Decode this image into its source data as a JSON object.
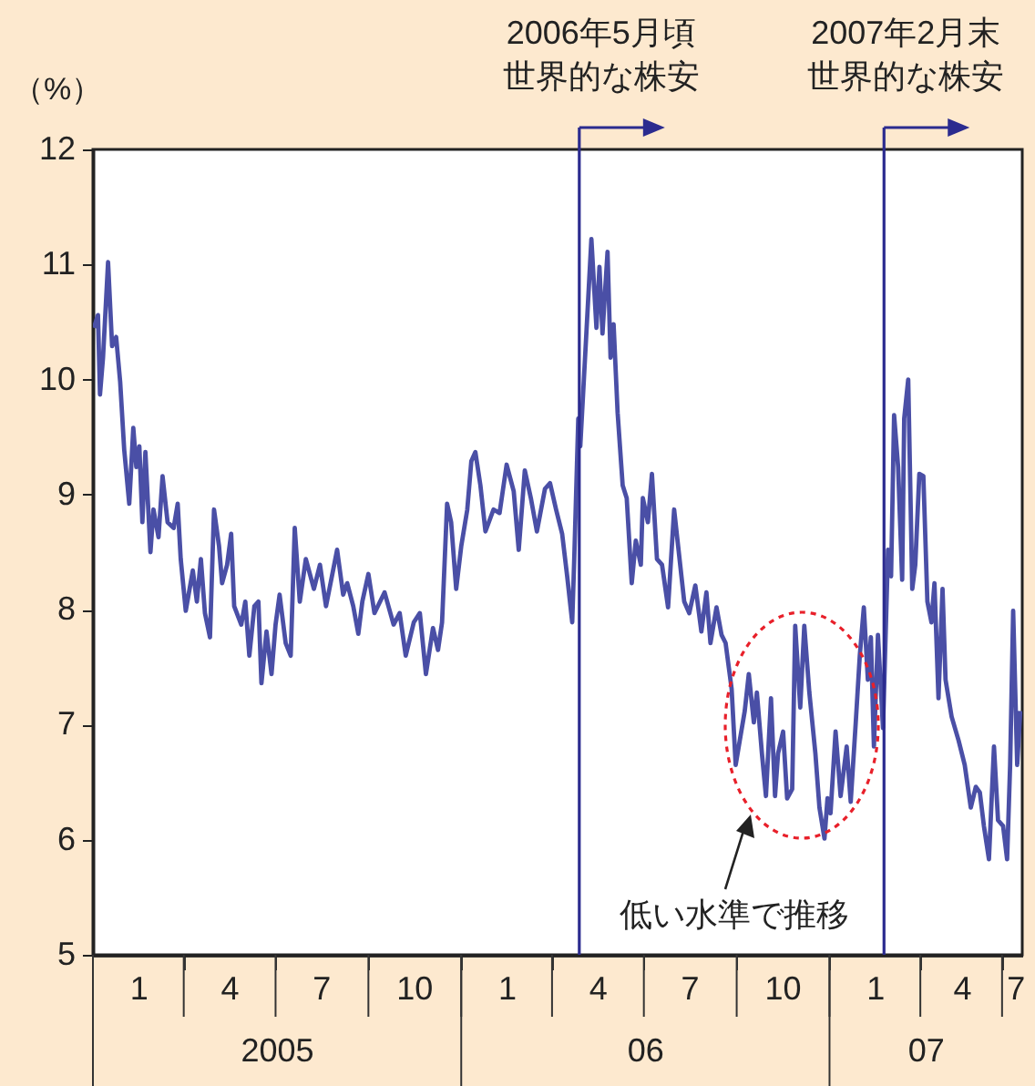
{
  "chart_data": {
    "type": "line",
    "ylabel": "（%）",
    "color": "#4a4fa6",
    "x": [
      "2005-01-02",
      "2005-01-06",
      "2005-01-08",
      "2005-01-11",
      "2005-01-16",
      "2005-01-20",
      "2005-01-24",
      "2005-01-28",
      "2005-02-01",
      "2005-02-06",
      "2005-02-10",
      "2005-02-13",
      "2005-02-16",
      "2005-02-19",
      "2005-02-22",
      "2005-02-27",
      "2005-03-02",
      "2005-03-07",
      "2005-03-11",
      "2005-03-16",
      "2005-03-22",
      "2005-03-26",
      "2005-03-29",
      "2005-04-03",
      "2005-04-10",
      "2005-04-14",
      "2005-04-18",
      "2005-04-22",
      "2005-04-27",
      "2005-05-01",
      "2005-05-06",
      "2005-05-09",
      "2005-05-14",
      "2005-05-18",
      "2005-05-21",
      "2005-05-28",
      "2005-06-01",
      "2005-06-05",
      "2005-06-10",
      "2005-06-14",
      "2005-06-17",
      "2005-06-22",
      "2005-06-27",
      "2005-07-01",
      "2005-07-05",
      "2005-07-11",
      "2005-07-16",
      "2005-07-20",
      "2005-07-25",
      "2005-07-31",
      "2005-08-08",
      "2005-08-14",
      "2005-08-20",
      "2005-08-31",
      "2005-09-06",
      "2005-09-10",
      "2005-09-16",
      "2005-09-21",
      "2005-09-25",
      "2005-10-01",
      "2005-10-07",
      "2005-10-17",
      "2005-10-26",
      "2005-11-01",
      "2005-11-07",
      "2005-11-15",
      "2005-11-21",
      "2005-11-27",
      "2005-12-04",
      "2005-12-09",
      "2005-12-13",
      "2005-12-18",
      "2005-12-22",
      "2005-12-27",
      "2006-01-01",
      "2006-01-07",
      "2006-01-11",
      "2006-01-15",
      "2006-01-20",
      "2006-01-25",
      "2006-02-02",
      "2006-02-08",
      "2006-02-15",
      "2006-02-22",
      "2006-02-27",
      "2006-03-05",
      "2006-03-11",
      "2006-03-17",
      "2006-03-25",
      "2006-03-30",
      "2006-04-05",
      "2006-04-11",
      "2006-04-16",
      "2006-04-21",
      "2006-04-23",
      "2006-04-27",
      "2006-04-29",
      "2006-05-05",
      "2006-05-10",
      "2006-05-15",
      "2006-05-18",
      "2006-05-21",
      "2006-05-26",
      "2006-05-29",
      "2006-06-01",
      "2006-06-05",
      "2006-06-10",
      "2006-06-14",
      "2006-06-19",
      "2006-06-23",
      "2006-06-28",
      "2006-06-30",
      "2006-07-05",
      "2006-07-09",
      "2006-07-14",
      "2006-07-19",
      "2006-07-25",
      "2006-07-31",
      "2006-08-04",
      "2006-08-10",
      "2006-08-15",
      "2006-08-21",
      "2006-08-27",
      "2006-09-01",
      "2006-09-05",
      "2006-09-11",
      "2006-09-16",
      "2006-09-20",
      "2006-09-26",
      "2006-09-30",
      "2006-10-04",
      "2006-10-09",
      "2006-10-13",
      "2006-10-18",
      "2006-10-21",
      "2006-10-26",
      "2006-10-30",
      "2006-11-04",
      "2006-11-08",
      "2006-11-11",
      "2006-11-16",
      "2006-11-20",
      "2006-11-25",
      "2006-11-28",
      "2006-12-03",
      "2006-12-07",
      "2006-12-12",
      "2006-12-18",
      "2006-12-22",
      "2006-12-27",
      "2006-12-30",
      "2007-01-02",
      "2007-01-07",
      "2007-01-12",
      "2007-01-18",
      "2007-01-22",
      "2007-01-27",
      "2007-01-31",
      "2007-02-04",
      "2007-02-08",
      "2007-02-11",
      "2007-02-14",
      "2007-02-18",
      "2007-02-23",
      "2007-02-28",
      "2007-03-03",
      "2007-03-06",
      "2007-03-10",
      "2007-03-14",
      "2007-03-16",
      "2007-03-20",
      "2007-03-24",
      "2007-03-27",
      "2007-03-31",
      "2007-04-04",
      "2007-04-08",
      "2007-04-12",
      "2007-04-15",
      "2007-04-19",
      "2007-04-23",
      "2007-04-26",
      "2007-05-02",
      "2007-05-09",
      "2007-05-15",
      "2007-05-21",
      "2007-05-26",
      "2007-05-30",
      "2007-06-03",
      "2007-06-08",
      "2007-06-13",
      "2007-06-17",
      "2007-06-22",
      "2007-06-26",
      "2007-06-29",
      "2007-07-02",
      "2007-07-06",
      "2007-07-09"
    ],
    "values": [
      10.45,
      10.56,
      9.87,
      10.19,
      11.02,
      10.29,
      10.37,
      9.98,
      9.39,
      8.92,
      9.58,
      9.24,
      9.42,
      8.76,
      9.37,
      8.5,
      8.87,
      8.63,
      9.16,
      8.76,
      8.71,
      8.92,
      8.44,
      7.99,
      8.34,
      8.07,
      8.44,
      7.97,
      7.76,
      8.87,
      8.55,
      8.23,
      8.39,
      8.66,
      8.03,
      7.87,
      8.07,
      7.6,
      8.03,
      8.07,
      7.36,
      7.81,
      7.44,
      7.87,
      8.13,
      7.71,
      7.6,
      8.71,
      8.07,
      8.44,
      8.18,
      8.39,
      8.03,
      8.52,
      8.13,
      8.23,
      8.03,
      7.79,
      8.07,
      8.31,
      7.97,
      8.15,
      7.87,
      7.97,
      7.6,
      7.89,
      7.97,
      7.44,
      7.84,
      7.65,
      7.89,
      8.92,
      8.76,
      8.18,
      8.55,
      8.87,
      9.29,
      9.37,
      9.08,
      8.68,
      8.87,
      8.84,
      9.26,
      9.03,
      8.52,
      9.21,
      8.97,
      8.68,
      9.05,
      9.1,
      8.87,
      8.66,
      8.29,
      7.89,
      8.44,
      9.66,
      9.42,
      10.4,
      11.22,
      10.45,
      10.98,
      10.4,
      11.11,
      10.19,
      10.48,
      9.71,
      9.08,
      8.97,
      8.23,
      8.6,
      8.39,
      8.97,
      8.76,
      9.18,
      8.44,
      8.39,
      8.02,
      8.87,
      8.55,
      8.07,
      7.97,
      8.21,
      7.81,
      8.15,
      7.71,
      8.02,
      7.78,
      7.71,
      7.31,
      6.65,
      6.86,
      7.12,
      7.44,
      7.02,
      7.28,
      6.75,
      6.38,
      7.23,
      6.38,
      6.75,
      6.94,
      6.36,
      6.44,
      7.86,
      7.15,
      7.86,
      7.28,
      6.75,
      6.28,
      6.01,
      6.36,
      6.23,
      6.94,
      6.38,
      6.81,
      6.33,
      7.02,
      7.6,
      8.02,
      7.39,
      7.76,
      6.81,
      7.78,
      6.97,
      8.52,
      8.29,
      9.69,
      9.24,
      8.26,
      9.66,
      10.0,
      8.18,
      8.39,
      9.18,
      9.16,
      8.07,
      7.89,
      8.23,
      7.23,
      8.18,
      7.39,
      7.07,
      6.86,
      6.65,
      6.28,
      6.46,
      6.41,
      6.12,
      5.83,
      6.81,
      6.17,
      6.12,
      5.83,
      6.65,
      7.99,
      6.65,
      7.12
    ],
    "xlim": [
      "2005-01-01",
      "2007-07-11"
    ],
    "xticks": [
      {
        "value": "2005-02-15",
        "label": "1"
      },
      {
        "value": "2005-04-01",
        "label": null
      },
      {
        "value": "2005-05-16",
        "label": "4"
      },
      {
        "value": "2005-07-01",
        "label": null
      },
      {
        "value": "2005-08-15",
        "label": "7"
      },
      {
        "value": "2005-10-01",
        "label": null
      },
      {
        "value": "2005-11-15",
        "label": "10"
      },
      {
        "value": "2006-01-01",
        "label": null
      },
      {
        "value": "2006-02-15",
        "label": "1"
      },
      {
        "value": "2006-04-01",
        "label": null
      },
      {
        "value": "2006-05-16",
        "label": "4"
      },
      {
        "value": "2006-07-01",
        "label": null
      },
      {
        "value": "2006-08-15",
        "label": "7"
      },
      {
        "value": "2006-10-01",
        "label": null
      },
      {
        "value": "2006-11-15",
        "label": "10"
      },
      {
        "value": "2007-01-01",
        "label": null
      },
      {
        "value": "2007-02-15",
        "label": "1"
      },
      {
        "value": "2007-04-01",
        "label": null
      },
      {
        "value": "2007-05-12",
        "label": "4"
      },
      {
        "value": "2007-06-21",
        "label": null
      },
      {
        "value": "2007-07-04",
        "label": "7"
      }
    ],
    "x2ticks": [
      {
        "value": "2005-07-02",
        "label": "2005"
      },
      {
        "value": "2006-01-01",
        "label": null
      },
      {
        "value": "2006-07-02",
        "label": "06"
      },
      {
        "value": "2007-01-01",
        "label": null
      },
      {
        "value": "2007-04-06",
        "label": "07"
      }
    ],
    "ylim": [
      5,
      12
    ],
    "yticks": [
      5,
      6,
      7,
      8,
      9,
      10,
      11,
      12
    ],
    "ref_lines": [
      {
        "axis": "x",
        "value": "2006-04-28",
        "label": "2006年5月頃世界的な株安",
        "color": "#2b2b8f"
      },
      {
        "axis": "x",
        "value": "2007-02-24",
        "label": "2007年2月末世界的な株安",
        "color": "#2b2b8f"
      }
    ],
    "x2lim": [
      "2005-01-01",
      "2007-07-11"
    ],
    "annotations": [
      "低い水準で推移"
    ]
  }
}
